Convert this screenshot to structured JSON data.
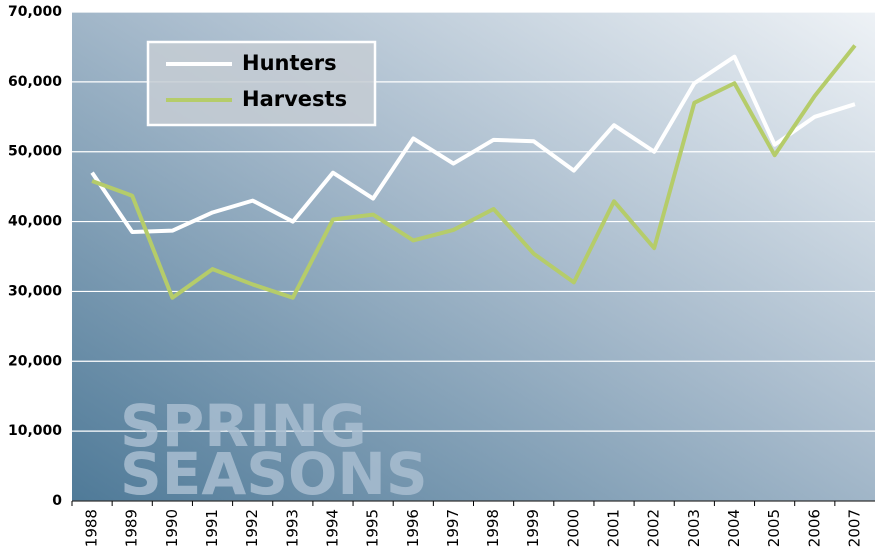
{
  "chart_data": {
    "type": "line",
    "annotation": [
      "SPRING",
      "SEASONS"
    ],
    "categories": [
      "1988",
      "1989",
      "1990",
      "1991",
      "1992",
      "1993",
      "1994",
      "1995",
      "1996",
      "1997",
      "1998",
      "1999",
      "2000",
      "2001",
      "2002",
      "2003",
      "2004",
      "2005",
      "2006",
      "2007"
    ],
    "series": [
      {
        "name": "Hunters",
        "color": "#ffffff",
        "values": [
          47000,
          38500,
          38700,
          41300,
          43000,
          40000,
          47000,
          43300,
          51900,
          48300,
          51700,
          51500,
          47300,
          53800,
          50000,
          59800,
          63600,
          51000,
          55000,
          56800
        ]
      },
      {
        "name": "Harvests",
        "color": "#b5cc6a",
        "values": [
          45800,
          43700,
          29100,
          33200,
          31000,
          29100,
          40300,
          41000,
          37300,
          38800,
          41800,
          35400,
          31300,
          42900,
          36200,
          57000,
          59800,
          49500,
          58000,
          65200
        ]
      }
    ],
    "ylim": [
      0,
      70000
    ],
    "yticks": [
      0,
      {
        "value": 10000,
        "label": "10,000"
      },
      {
        "value": 20000,
        "label": "20,000"
      },
      {
        "value": 30000,
        "label": "30,000"
      },
      {
        "value": 40000,
        "label": "40,000"
      },
      {
        "value": 50000,
        "label": "50,000"
      },
      {
        "value": 60000,
        "label": "60,000"
      },
      {
        "value": 70000,
        "label": "70,000"
      }
    ],
    "grid": true
  }
}
